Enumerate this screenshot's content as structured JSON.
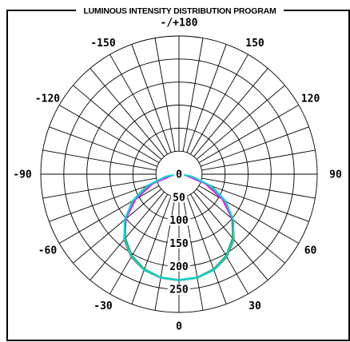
{
  "title": "LUMINOUS INTENSITY DISTRIBUTION PROGRAM",
  "chart_data": {
    "type": "polar",
    "angular_labels": [
      {
        "angle": 180,
        "label": "-/+180"
      },
      {
        "angle": -150,
        "label": "-150"
      },
      {
        "angle": 150,
        "label": "150"
      },
      {
        "angle": -120,
        "label": "-120"
      },
      {
        "angle": 120,
        "label": "120"
      },
      {
        "angle": -90,
        "label": "-90"
      },
      {
        "angle": 90,
        "label": "90"
      },
      {
        "angle": -60,
        "label": "-60"
      },
      {
        "angle": 60,
        "label": "60"
      },
      {
        "angle": -30,
        "label": "-30"
      },
      {
        "angle": 30,
        "label": "30"
      },
      {
        "angle": 0,
        "label": "0"
      }
    ],
    "radial_labels": [
      "0",
      "50",
      "100",
      "150",
      "200",
      "250"
    ],
    "radial_ticks": [
      0,
      50,
      100,
      150,
      200,
      250
    ],
    "radial_max": 300,
    "angle_step": 10,
    "grid": true,
    "series": [
      {
        "color": "#b85a18",
        "angles": [
          0,
          10,
          20,
          30,
          40,
          50,
          60,
          70,
          80,
          90,
          -10,
          -20,
          -30,
          -40,
          -50,
          -60,
          -70,
          -80,
          -90
        ],
        "values": [
          231,
          229,
          222,
          208,
          186,
          153,
          112,
          63,
          15,
          0,
          229,
          222,
          208,
          186,
          153,
          112,
          63,
          15,
          0
        ]
      },
      {
        "color": "#ff00ff",
        "angles": [
          0,
          10,
          20,
          30,
          40,
          50,
          60,
          70,
          80,
          90,
          -10,
          -20,
          -30,
          -40,
          -50,
          -60,
          -70,
          -80,
          -90
        ],
        "values": [
          230,
          228,
          220,
          205,
          182,
          150,
          108,
          60,
          14,
          0,
          228,
          220,
          205,
          182,
          150,
          108,
          60,
          14,
          0
        ]
      },
      {
        "color": "#1a8c2e",
        "angles": [
          0,
          10,
          20,
          30,
          40,
          50,
          60,
          70,
          80,
          90,
          -10,
          -20,
          -30,
          -40,
          -50,
          -60,
          -70,
          -80,
          -90
        ],
        "values": [
          229,
          227,
          219,
          204,
          181,
          152,
          118,
          76,
          30,
          0,
          227,
          219,
          204,
          181,
          152,
          118,
          76,
          30,
          0
        ]
      },
      {
        "color": "#00d8d8",
        "angles": [
          0,
          10,
          20,
          30,
          40,
          50,
          60,
          70,
          80,
          90,
          -10,
          -20,
          -30,
          -40,
          -50,
          -60,
          -70,
          -80,
          -90
        ],
        "values": [
          230,
          228,
          221,
          206,
          184,
          154,
          116,
          72,
          28,
          0,
          228,
          221,
          206,
          184,
          154,
          116,
          72,
          28,
          0
        ]
      }
    ]
  }
}
